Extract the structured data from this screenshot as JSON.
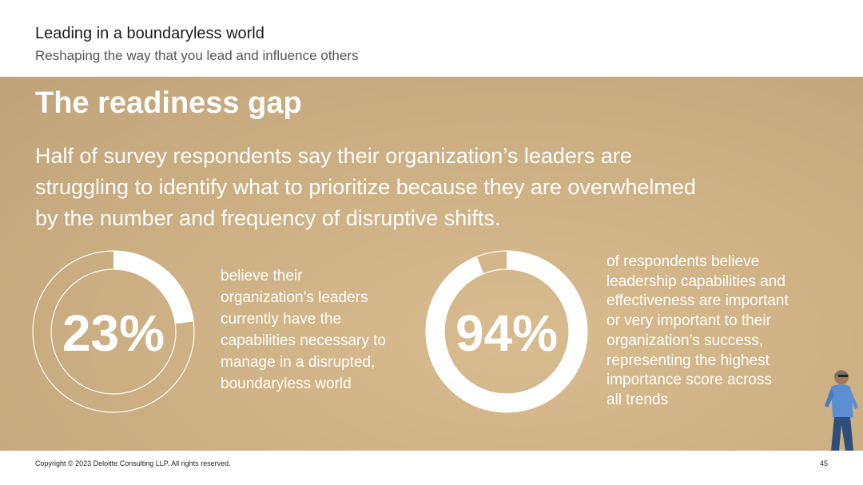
{
  "header": {
    "title": "Leading in a boundaryless world",
    "subtitle": "Reshaping the way that you lead and influence others"
  },
  "main": {
    "heading": "The readiness gap",
    "lead_lines": [
      "Half of survey respondents say their organization’s leaders are",
      "struggling to identify what to prioritize because they are overwhelmed",
      "by the number and frequency of disruptive shifts."
    ],
    "stats": [
      {
        "value": "23%",
        "percent": 23,
        "description_lines": [
          "believe their",
          "organization’s leaders",
          "currently have the",
          "capabilities necessary to",
          "manage in a disrupted,",
          "boundaryless world"
        ]
      },
      {
        "value": "94%",
        "percent": 94,
        "description_lines": [
          "of respondents believe",
          "leadership capabilities and",
          "effectiveness are important",
          "or very important to their",
          "organization’s success,",
          "representing the highest",
          "importance score across",
          "all trends"
        ]
      }
    ]
  },
  "footer": {
    "copyright": "Copyright © 2023 Deloitte Consulting LLP. All rights reserved.",
    "page_number": "45"
  },
  "colors": {
    "panel_bg": "#cfb285",
    "ring_fill": "#ffffff",
    "text_light": "#ffffff"
  }
}
